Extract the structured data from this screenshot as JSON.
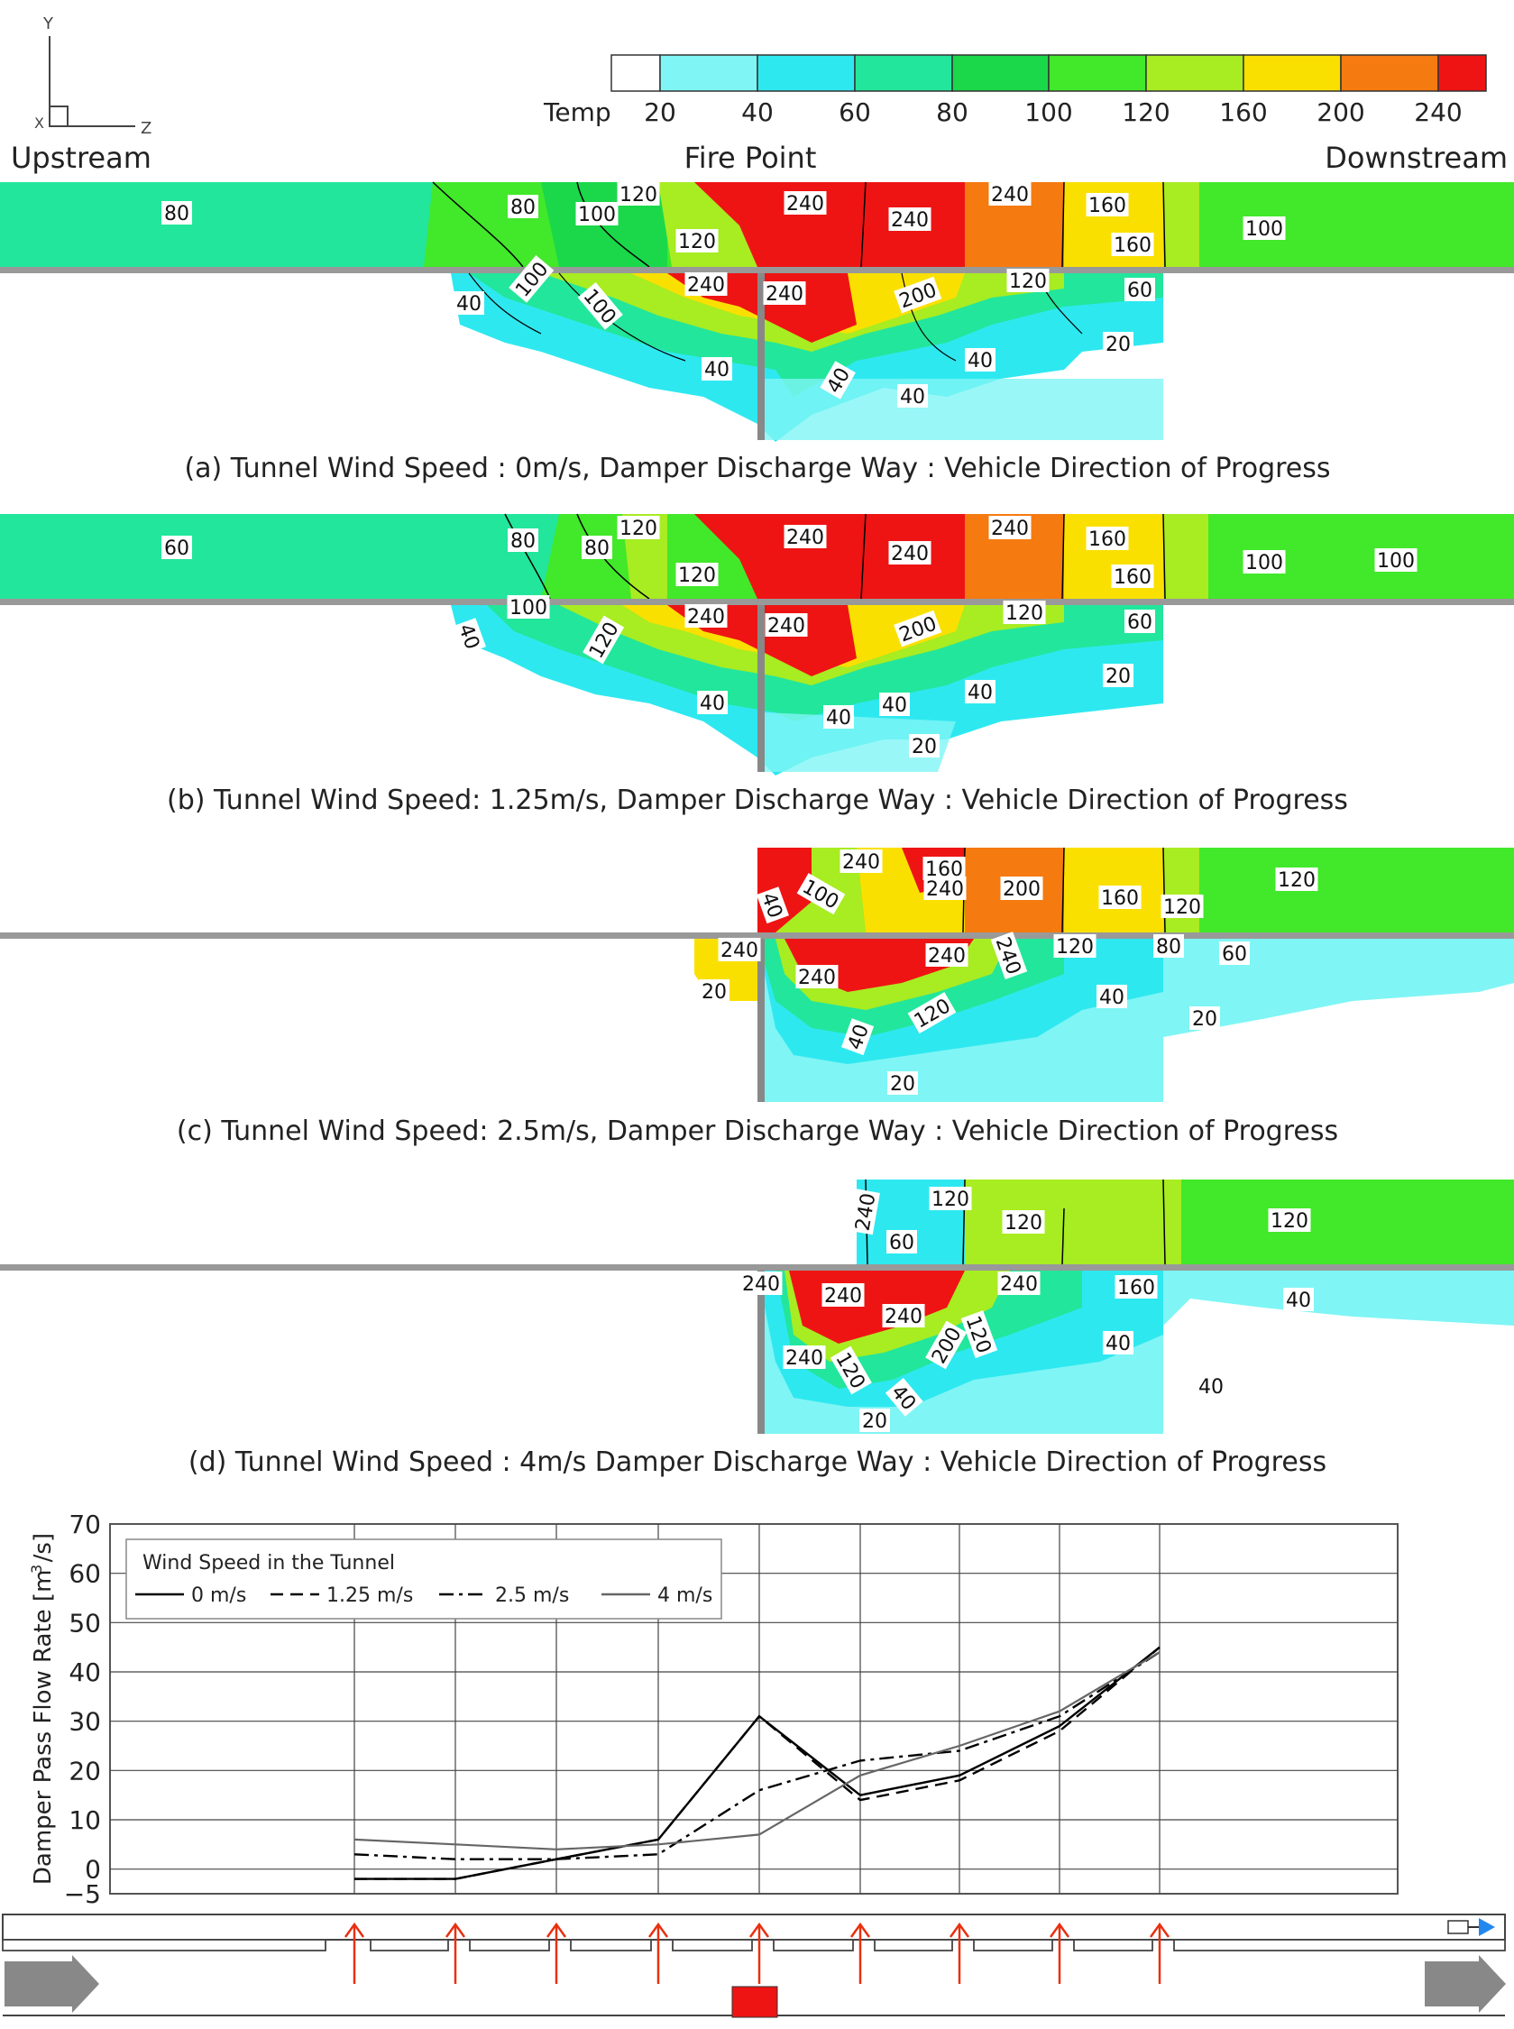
{
  "axes_icon": {
    "y": "Y",
    "x": "X",
    "z": "Z"
  },
  "legend": {
    "title": "Temp",
    "ticks": [
      "20",
      "40",
      "60",
      "80",
      "100",
      "120",
      "160",
      "200",
      "240"
    ],
    "colors": [
      "#ffffff",
      "#7ff5f5",
      "#2ee8f0",
      "#22e69c",
      "#1ad84a",
      "#42e82a",
      "#a8ec22",
      "#fae000",
      "#f57a10",
      "#ee1414"
    ]
  },
  "header": {
    "left": "Upstream",
    "center": "Fire Point",
    "right": "Downstream"
  },
  "panels": [
    {
      "caption": "(a) Tunnel Wind Speed : 0m/s, Damper Discharge Way : Vehicle Direction of Progress",
      "upper_labels": [
        "80",
        "80",
        "100",
        "120",
        "120",
        "240",
        "240",
        "240",
        "160",
        "160",
        "100"
      ],
      "lower_labels": [
        "40",
        "100",
        "100",
        "240",
        "240",
        "200",
        "120",
        "60",
        "40",
        "40",
        "40",
        "40",
        "20"
      ]
    },
    {
      "caption": "(b)  Tunnel Wind Speed: 1.25m/s, Damper Discharge Way : Vehicle Direction of Progress",
      "upper_labels": [
        "60",
        "80",
        "80",
        "120",
        "120",
        "240",
        "240",
        "240",
        "160",
        "160",
        "100",
        "100"
      ],
      "lower_labels": [
        "100",
        "40",
        "120",
        "240",
        "240",
        "200",
        "120",
        "60",
        "40",
        "40",
        "40",
        "40",
        "20",
        "20"
      ]
    },
    {
      "caption": "(c)  Tunnel Wind Speed: 2.5m/s, Damper Discharge Way : Vehicle Direction of Progress",
      "upper_labels": [
        "40",
        "100",
        "240",
        "240",
        "160",
        "200",
        "160",
        "120",
        "120"
      ],
      "lower_labels": [
        "240",
        "20",
        "240",
        "240",
        "240",
        "120",
        "120",
        "80",
        "60",
        "40",
        "40",
        "20",
        "20"
      ]
    },
    {
      "caption": "(d)  Tunnel Wind Speed : 4m/s Damper Discharge Way : Vehicle Direction of Progress",
      "upper_labels": [
        "240",
        "120",
        "60",
        "120",
        "120"
      ],
      "lower_labels": [
        "240",
        "240",
        "240",
        "240",
        "200",
        "120",
        "120",
        "40",
        "240",
        "160",
        "40",
        "40",
        "40",
        "20"
      ]
    }
  ],
  "chart_data": {
    "type": "line",
    "ylabel": "Damper Pass Flow Rate [m /s]",
    "ylabel_sup": "3",
    "ylim": [
      -5,
      70
    ],
    "yticks": [
      "70",
      "60",
      "50",
      "40",
      "30",
      "20",
      "10",
      "0",
      "−5"
    ],
    "legend_title": "Wind Speed in the Tunnel",
    "legend_position": "top-left",
    "grid": true,
    "x": [
      1,
      2,
      3,
      4,
      5,
      6,
      7,
      8,
      9
    ],
    "series": [
      {
        "name": "0 m/s",
        "style": "solid",
        "color": "#000000",
        "values": [
          -2,
          -2,
          2,
          6,
          31,
          15,
          19,
          29,
          45
        ]
      },
      {
        "name": "1.25 m/s",
        "style": "dashed",
        "color": "#000000",
        "values": [
          -2,
          -2,
          2,
          6,
          31,
          14,
          18,
          28,
          45
        ]
      },
      {
        "name": "2.5 m/s",
        "style": "dashdot",
        "color": "#000000",
        "values": [
          3,
          2,
          2,
          3,
          16,
          22,
          24,
          31,
          44
        ]
      },
      {
        "name": "4 m/s",
        "style": "solid",
        "color": "#666666",
        "values": [
          6,
          5,
          4,
          5,
          7,
          19,
          25,
          32,
          44
        ]
      }
    ]
  },
  "schematic": {
    "arrow_color": "#e83010",
    "fire_color": "#ee1414",
    "fan_color": "#2288ee",
    "flow_color": "#777777"
  }
}
